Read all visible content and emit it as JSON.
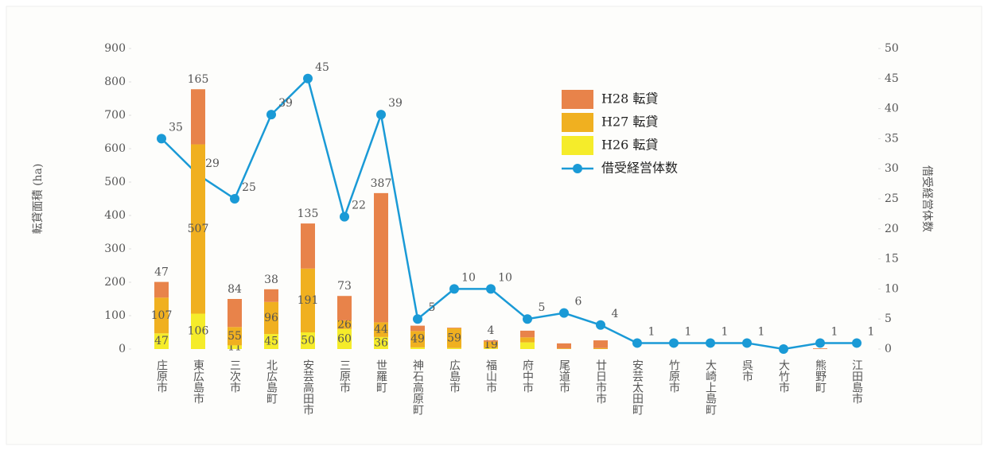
{
  "chart_data": {
    "type": "bar-line",
    "categories": [
      "庄原市",
      "東広島市",
      "三次市",
      "北広島町",
      "安芸高田市",
      "三原市",
      "世羅町",
      "神石高原町",
      "広島市",
      "福山市",
      "府中市",
      "尾道市",
      "廿日市市",
      "安芸太田町",
      "竹原市",
      "大崎上島町",
      "呉市",
      "大竹市",
      "熊野町",
      "江田島市"
    ],
    "series": [
      {
        "name": "H26 転貸",
        "color": "#f5ec2a",
        "values": [
          47,
          106,
          11,
          45,
          50,
          60,
          36,
          5,
          3,
          3,
          20,
          0,
          0,
          0,
          0,
          0,
          0,
          0,
          0,
          0
        ],
        "value_labels": [
          "47",
          "106",
          "11",
          "45",
          "50",
          "60",
          "36",
          null,
          null,
          null,
          null,
          null,
          null,
          null,
          null,
          null,
          null,
          null,
          null,
          null
        ]
      },
      {
        "name": "H27 転貸",
        "color": "#f0b020",
        "values": [
          107,
          507,
          55,
          96,
          191,
          26,
          44,
          49,
          59,
          19,
          15,
          2,
          3,
          0,
          0,
          0,
          0,
          0,
          0,
          0
        ],
        "value_labels": [
          "107",
          "507",
          "55",
          "96",
          "191",
          "26",
          "44",
          "49",
          "59",
          "19",
          null,
          null,
          null,
          null,
          null,
          null,
          null,
          null,
          null,
          null
        ]
      },
      {
        "name": "H28 転貸",
        "color": "#e8834a",
        "values": [
          47,
          165,
          84,
          38,
          135,
          73,
          387,
          16,
          2,
          4,
          20,
          15,
          23,
          0,
          0,
          0,
          0,
          0,
          2,
          0
        ],
        "value_labels": [
          "47",
          "165",
          "84",
          "38",
          "135",
          "73",
          "387",
          null,
          null,
          "4",
          null,
          null,
          null,
          null,
          null,
          null,
          null,
          null,
          null,
          null
        ]
      },
      {
        "name": "借受経営体数",
        "color": "#1a9ad6",
        "axis": "y2",
        "values": [
          35,
          29,
          25,
          39,
          45,
          22,
          39,
          5,
          10,
          10,
          5,
          6,
          4,
          1,
          1,
          1,
          1,
          0,
          1,
          1
        ],
        "value_labels": [
          "35",
          "29",
          "25",
          "39",
          "45",
          "22",
          "39",
          "5",
          "10",
          "10",
          "5",
          "6",
          "4",
          "1",
          "1",
          "1",
          "1",
          null,
          "1",
          "1"
        ]
      }
    ],
    "y_label": "転貸面積 (ha)",
    "y2_label": "借受経営体数",
    "ylim": [
      0,
      900
    ],
    "yticks": [
      0,
      100,
      200,
      300,
      400,
      500,
      600,
      700,
      800,
      900
    ],
    "y2lim": [
      0,
      50
    ],
    "y2ticks": [
      0,
      5,
      10,
      15,
      20,
      25,
      30,
      35,
      40,
      45,
      50
    ]
  }
}
